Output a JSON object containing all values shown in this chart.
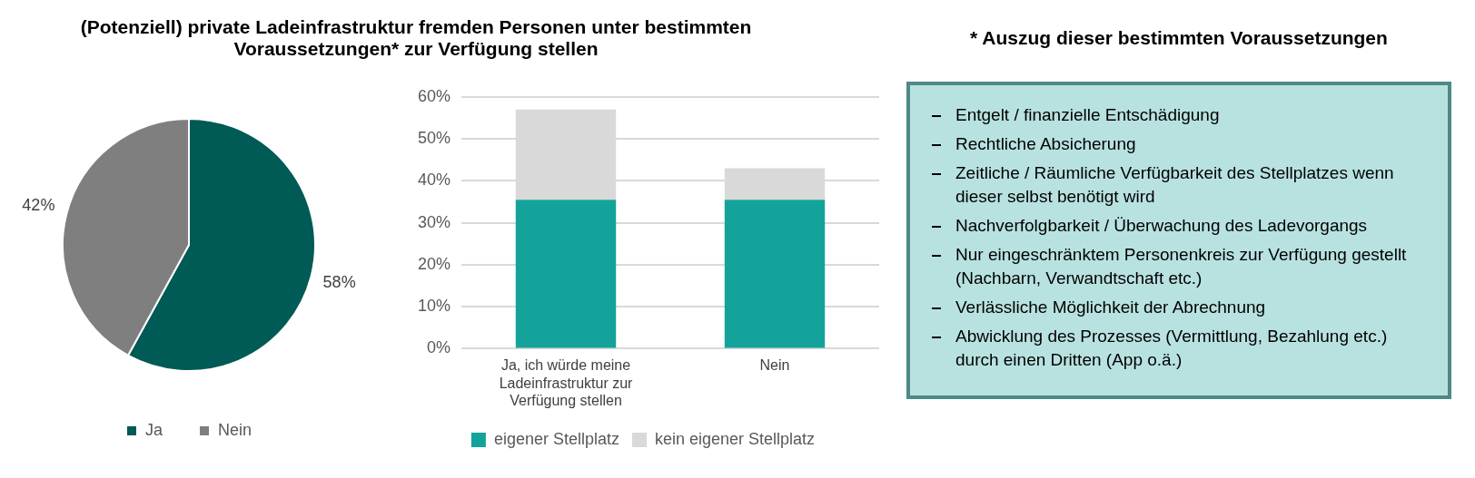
{
  "chart_data": [
    {
      "type": "pie",
      "title": "(Potenziell) private Ladeinfrastruktur fremden Personen unter bestimmten Voraussetzungen* zur Verfügung stellen",
      "categories": [
        "Ja",
        "Nein"
      ],
      "values": [
        58,
        42
      ],
      "colors": [
        "#005a55",
        "#7f7f7f"
      ],
      "value_labels": [
        "58%",
        "42%"
      ],
      "legend": "bottom"
    },
    {
      "type": "bar",
      "categories": [
        "Ja, ich würde meine Ladeinfrastruktur zur Verfügung stellen",
        "Nein"
      ],
      "stacked": true,
      "series": [
        {
          "name": "eigener Stellplatz",
          "color": "#14a39a",
          "values": [
            35.5,
            35.5
          ]
        },
        {
          "name": "kein eigener Stellplatz",
          "color": "#d9d9d9",
          "values": [
            21.5,
            7.5
          ]
        }
      ],
      "ylim": [
        0,
        60
      ],
      "yticks": [
        {
          "value": 0,
          "label": "0%"
        },
        {
          "value": 10,
          "label": "10%"
        },
        {
          "value": 20,
          "label": "20%"
        },
        {
          "value": 30,
          "label": "30%"
        },
        {
          "value": 40,
          "label": "40%"
        },
        {
          "value": 50,
          "label": "50%"
        },
        {
          "value": 60,
          "label": "60%"
        }
      ],
      "grid": "y",
      "legend": "bottom"
    },
    {
      "type": "other",
      "title": "* Auszug dieser bestimmten Voraussetzungen",
      "annotations": [
        "Entgelt / finanzielle Entschädigung",
        "Rechtliche Absicherung",
        "Zeitliche / Räumliche Verfügbarkeit des Stellplatzes wenn dieser selbst benötigt wird",
        "Nachverfolgbarkeit / Überwachung des Ladevorgangs",
        "Nur eingeschränktem Personenkreis zur Verfügung gestellt (Nachbarn, Verwandtschaft etc.)",
        "Verlässliche Möglichkeit der Abrechnung",
        "Abwicklung des Prozesses (Vermittlung, Bezahlung etc.) durch einen Dritten (App o.ä.)"
      ]
    }
  ]
}
